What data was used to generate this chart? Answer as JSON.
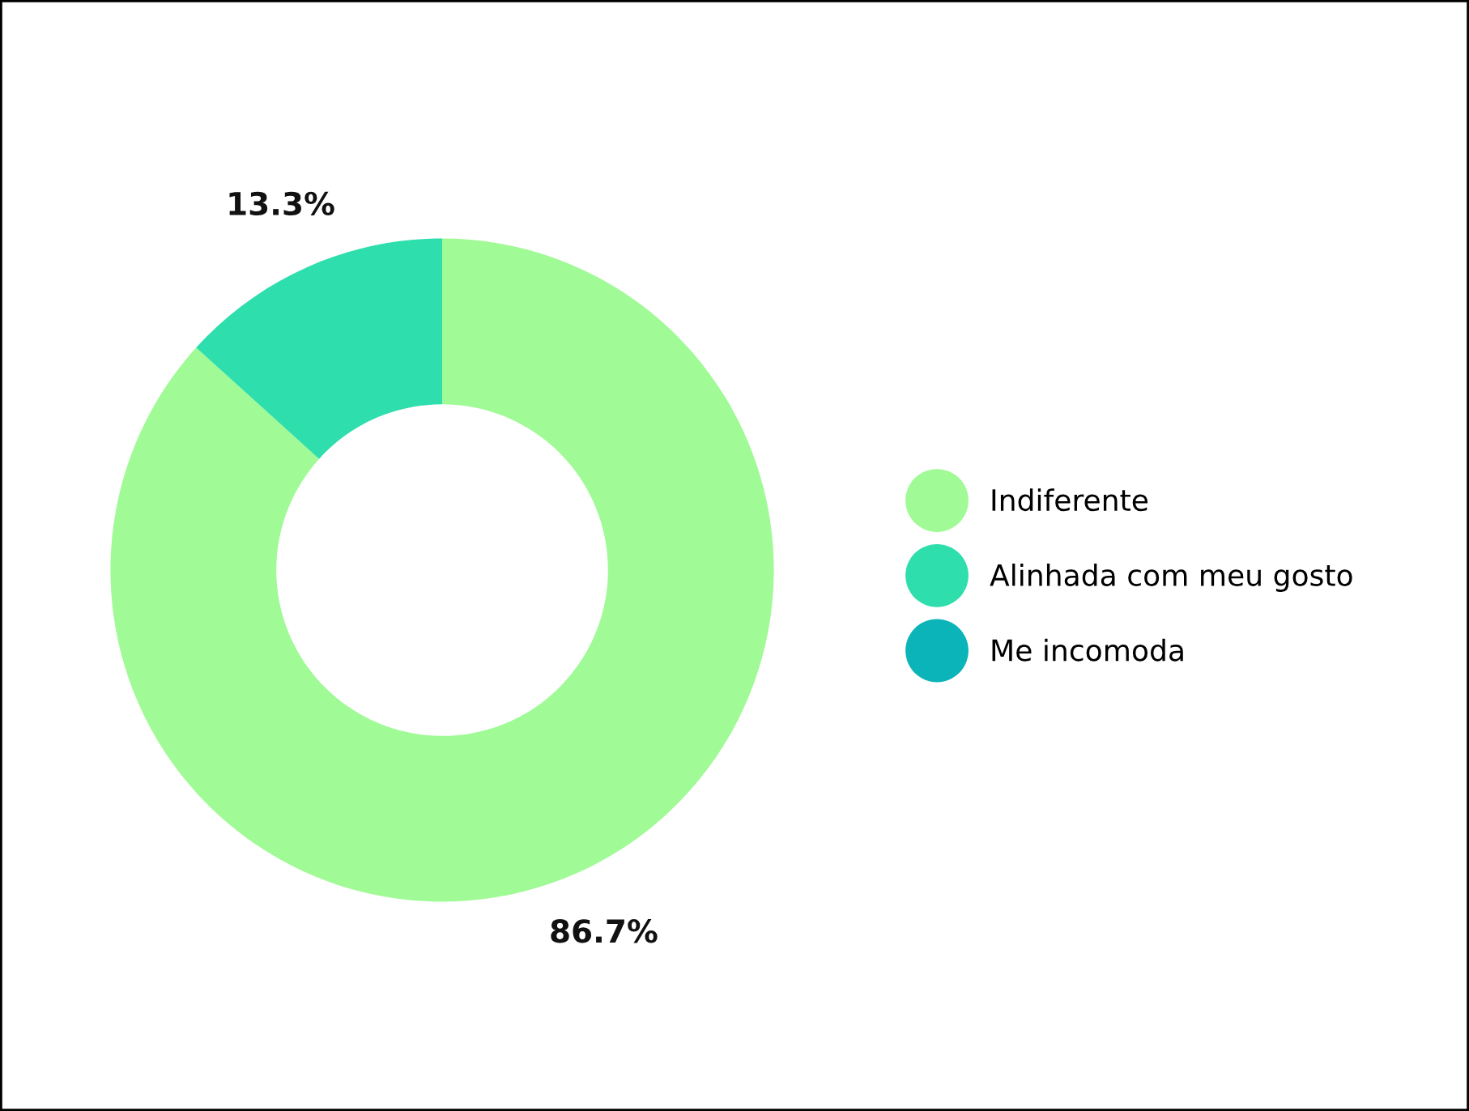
{
  "chart_data": {
    "type": "donut",
    "categories": [
      "Indiferente",
      "Alinhada com meu gosto",
      "Me incomoda"
    ],
    "values": [
      86.7,
      13.3,
      0
    ],
    "colors": [
      "#a0fa96",
      "#2edeac",
      "#0ab4b8"
    ],
    "value_labels": [
      "86.7%",
      "13.3%",
      null
    ],
    "legend": "right"
  }
}
